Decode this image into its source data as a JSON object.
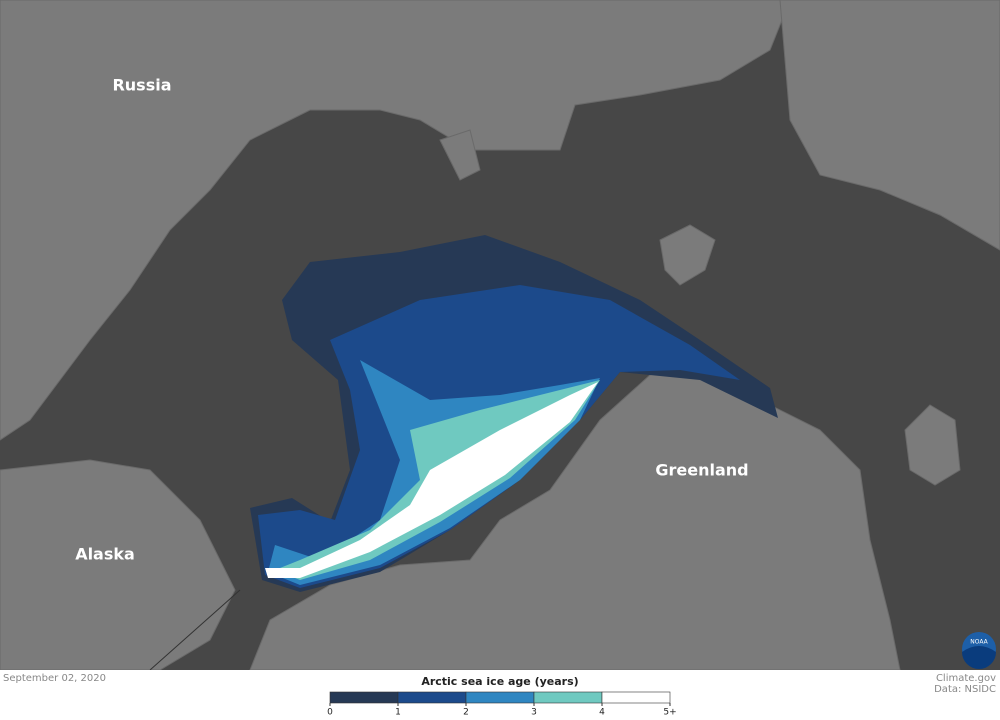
{
  "map": {
    "labels": [
      "Russia",
      "Alaska",
      "Greenland"
    ]
  },
  "footer": {
    "date": "September 02, 2020",
    "credit": "Climate.gov",
    "source": "Data: NSIDC",
    "logo_text": "NOAA"
  },
  "legend": {
    "title": "Arctic sea ice age (years)",
    "colors": [
      "#263955",
      "#1c4a8b",
      "#2f86c1",
      "#6fc9c0",
      "#ffffff"
    ],
    "ticks": [
      0,
      1,
      2,
      3,
      4,
      "5+"
    ]
  }
}
